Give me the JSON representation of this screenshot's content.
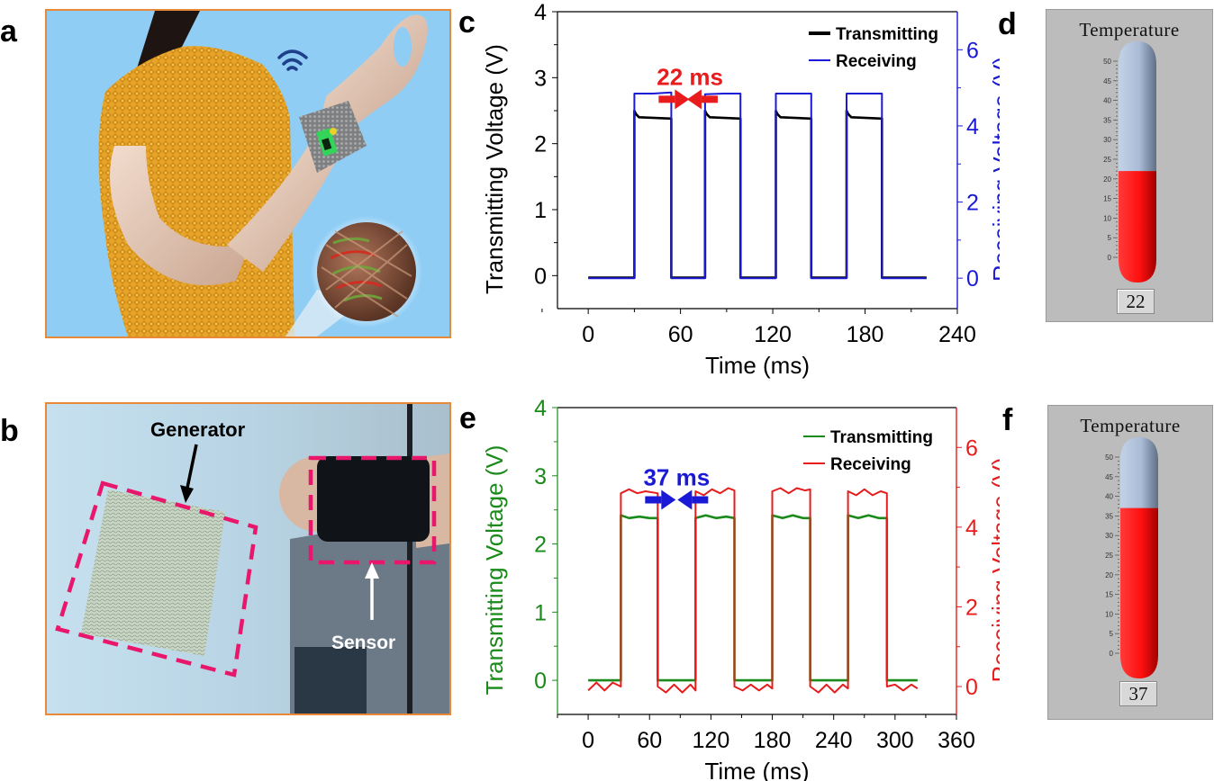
{
  "panels": {
    "a": {
      "label": "a"
    },
    "b": {
      "label": "b",
      "generator_label": "Generator",
      "sensor_label": "Sensor"
    },
    "c": {
      "label": "c"
    },
    "d": {
      "label": "d"
    },
    "e": {
      "label": "e"
    },
    "f": {
      "label": "f"
    }
  },
  "colors": {
    "frame_orange": "#e8893a",
    "sky_blue": "#8fcdf5",
    "dash_pink": "#e8176b",
    "mercury_red": "#ff1010",
    "tube_blue": "#a9bcd6",
    "panel_gray": "#bcbcbc"
  },
  "thermometers": [
    {
      "title": "Temperature",
      "value": 22,
      "value_text": "22",
      "scale_min": 0,
      "scale_max": 50,
      "scale_ticks": [
        "0",
        "5",
        "10",
        "15",
        "20",
        "25",
        "30",
        "35",
        "40",
        "45",
        "50"
      ]
    },
    {
      "title": "Temperature",
      "value": 37,
      "value_text": "37",
      "scale_min": 0,
      "scale_max": 50,
      "scale_ticks": [
        "0",
        "5",
        "10",
        "15",
        "20",
        "25",
        "30",
        "35",
        "40",
        "45",
        "50"
      ]
    }
  ],
  "chart_data": [
    {
      "type": "line",
      "panel": "c",
      "xlabel": "Time (ms)",
      "ylabel": "Transmitting Voltage (V)",
      "y2label": "Receiving Voltage (V)",
      "xlim": [
        -20,
        240
      ],
      "ylim": [
        -0.5,
        4
      ],
      "y2lim": [
        -0.8,
        7
      ],
      "xticks": [
        0,
        60,
        120,
        180,
        240
      ],
      "xtick_labels": [
        "0",
        "60",
        "120",
        "180",
        "240"
      ],
      "yticks": [
        0,
        1,
        2,
        3,
        4
      ],
      "ytick_labels": [
        "0",
        "1",
        "2",
        "3",
        "4"
      ],
      "y2ticks": [
        0,
        2,
        4,
        6
      ],
      "y2tick_labels": [
        "0",
        "2",
        "4",
        "6"
      ],
      "annotation": {
        "text": "22 ms",
        "x_from": 54,
        "x_to": 76,
        "y": 2.7
      },
      "legend": {
        "placement": "top-right",
        "entries": [
          "Transmitting",
          "Receiving"
        ]
      },
      "axis_colors": {
        "left": "#000000",
        "right": "#1a1ad6",
        "annotation": "#e81c1c"
      },
      "series": [
        {
          "name": "Transmitting",
          "axis": "left",
          "color": "#000000",
          "x": [
            0,
            30,
            30,
            31,
            33,
            54,
            54,
            76,
            76,
            77,
            79,
            99,
            99,
            122,
            122,
            123,
            125,
            145,
            145,
            168,
            168,
            169,
            171,
            191,
            191,
            220
          ],
          "y": [
            -0.03,
            -0.03,
            2.5,
            2.45,
            2.4,
            2.38,
            -0.03,
            -0.03,
            2.5,
            2.45,
            2.4,
            2.38,
            -0.03,
            -0.03,
            2.5,
            2.45,
            2.4,
            2.38,
            -0.03,
            -0.03,
            2.5,
            2.45,
            2.4,
            2.38,
            -0.03,
            -0.03
          ]
        },
        {
          "name": "Receiving",
          "axis": "right",
          "color": "#1a1ad6",
          "x": [
            0,
            30,
            30,
            42,
            54,
            54,
            76,
            76,
            88,
            99,
            99,
            122,
            122,
            134,
            145,
            145,
            168,
            168,
            180,
            191,
            191,
            220
          ],
          "y": [
            0,
            0,
            4.85,
            4.85,
            4.88,
            0,
            0,
            4.83,
            4.85,
            4.85,
            0,
            0,
            4.85,
            4.85,
            4.85,
            0,
            0,
            4.85,
            4.85,
            4.85,
            0,
            0
          ]
        }
      ]
    },
    {
      "type": "line",
      "panel": "e",
      "xlabel": "Time (ms)",
      "ylabel": "Transmitting Voltage (V)",
      "y2label": "Receiving Voltage (V)",
      "xlim": [
        -30,
        360
      ],
      "ylim": [
        -0.5,
        4
      ],
      "y2lim": [
        -0.7,
        7
      ],
      "xticks": [
        0,
        60,
        120,
        180,
        240,
        300,
        360
      ],
      "xtick_labels": [
        "0",
        "60",
        "120",
        "180",
        "240",
        "300",
        "360"
      ],
      "yticks": [
        0,
        1,
        2,
        3,
        4
      ],
      "ytick_labels": [
        "0",
        "1",
        "2",
        "3",
        "4"
      ],
      "y2ticks": [
        0,
        2,
        4,
        6
      ],
      "y2tick_labels": [
        "0",
        "2",
        "4",
        "6"
      ],
      "annotation": {
        "text": "37 ms",
        "x_from": 68,
        "x_to": 105,
        "y": 2.7
      },
      "legend": {
        "placement": "top-right",
        "entries": [
          "Transmitting",
          "Receiving"
        ]
      },
      "axis_colors": {
        "left": "#1a8a1a",
        "right": "#e81c1c",
        "annotation": "#1a1ad6"
      },
      "series": [
        {
          "name": "Transmitting",
          "axis": "left",
          "color": "#1a8a1a",
          "x": [
            0,
            32,
            32,
            40,
            50,
            60,
            68,
            68,
            105,
            105,
            115,
            125,
            135,
            143,
            143,
            180,
            180,
            190,
            200,
            210,
            217,
            217,
            254,
            254,
            264,
            274,
            284,
            292,
            292,
            322
          ],
          "y": [
            0,
            0,
            2.42,
            2.38,
            2.4,
            2.38,
            2.38,
            0,
            0,
            2.38,
            2.42,
            2.38,
            2.4,
            2.38,
            0,
            0,
            2.42,
            2.38,
            2.42,
            2.38,
            2.38,
            0,
            0,
            2.42,
            2.38,
            2.42,
            2.38,
            2.38,
            0,
            0
          ]
        },
        {
          "name": "Receiving",
          "axis": "right",
          "color": "#e81c1c",
          "x": [
            0,
            8,
            16,
            24,
            32,
            32,
            40,
            48,
            56,
            68,
            68,
            76,
            84,
            92,
            100,
            105,
            105,
            113,
            121,
            129,
            137,
            143,
            143,
            151,
            159,
            167,
            175,
            180,
            180,
            188,
            196,
            204,
            212,
            217,
            217,
            225,
            233,
            241,
            249,
            254,
            254,
            262,
            270,
            278,
            286,
            292,
            292,
            300,
            308,
            316,
            322
          ],
          "y": [
            -0.1,
            0.1,
            -0.1,
            0.1,
            0,
            4.85,
            4.95,
            4.85,
            4.9,
            4.85,
            0,
            -0.15,
            0.05,
            -0.15,
            0.05,
            -0.1,
            4.9,
            4.8,
            4.95,
            4.85,
            4.98,
            4.92,
            0,
            -0.1,
            0.05,
            -0.1,
            0.05,
            -0.05,
            4.9,
            4.98,
            4.85,
            4.98,
            4.92,
            4.95,
            0,
            -0.15,
            0.05,
            -0.15,
            0.05,
            -0.05,
            4.9,
            4.8,
            4.95,
            4.8,
            4.9,
            4.85,
            0,
            0.05,
            -0.1,
            0.05,
            -0.05
          ]
        }
      ]
    }
  ]
}
